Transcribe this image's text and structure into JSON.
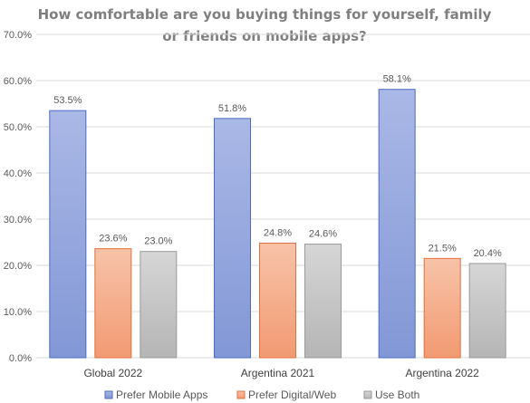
{
  "chart_data": {
    "type": "bar",
    "title": "How comfortable are you buying things for yourself, family or friends on mobile apps?",
    "title_lines": [
      "How comfortable are you buying things for yourself, family",
      "or friends on mobile apps?"
    ],
    "categories": [
      "Global 2022",
      "Argentina 2021",
      "Argentina 2022"
    ],
    "series": [
      {
        "name": "Prefer Mobile Apps",
        "values": [
          53.5,
          51.8,
          58.1
        ],
        "color": "#8fa3dc"
      },
      {
        "name": "Prefer Digital/Web",
        "values": [
          23.6,
          24.8,
          21.5
        ],
        "color": "#f4a582"
      },
      {
        "name": "Use Both",
        "values": [
          23.0,
          24.6,
          20.4
        ],
        "color": "#c4c4c4"
      }
    ],
    "ylim": [
      0,
      70
    ],
    "yticks": [
      0,
      10,
      20,
      30,
      40,
      50,
      60,
      70
    ],
    "tick_format": "0.0%",
    "data_label_format": "0.0%",
    "grid": true,
    "legend_position": "bottom"
  }
}
